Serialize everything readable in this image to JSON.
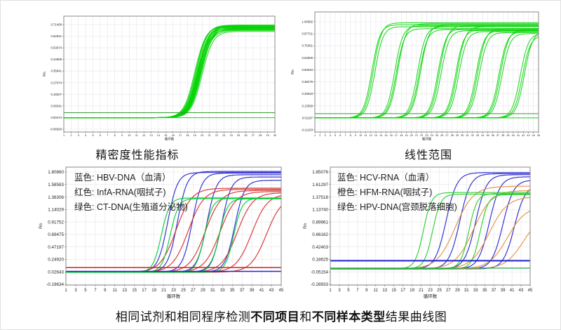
{
  "captions": {
    "top_left": "精密度性能指标",
    "top_right": "线性范围",
    "bottom": [
      {
        "text": "相同试剂和相同程序检测",
        "bold": false
      },
      {
        "text": "不同项目",
        "bold": true
      },
      {
        "text": "和",
        "bold": false
      },
      {
        "text": "不同样本类型",
        "bold": true
      },
      {
        "text": "结果曲线图",
        "bold": false
      }
    ]
  },
  "chart_data": [
    {
      "id": "precision",
      "type": "line",
      "title": "精密度性能指标",
      "xlabel": "循环数",
      "ylabel": "Rn",
      "grid": true,
      "legend_position": "none",
      "x_range": [
        1,
        30
      ],
      "x_ticks": [
        1,
        2,
        3,
        4,
        5,
        6,
        7,
        8,
        9,
        10,
        11,
        12,
        13,
        14,
        15,
        16,
        17,
        18,
        19,
        20,
        21,
        22,
        23,
        24,
        25,
        26,
        27,
        28,
        29,
        30
      ],
      "y_ticks": [
        "0.71408",
        "0.62541",
        "0.53674",
        "0.44808",
        "0.35941",
        "0.27074",
        "0.18207",
        "0.09341",
        "0.00474",
        "-0.08393"
      ],
      "y_range": [
        -0.08393,
        0.71408
      ],
      "thresholds": [
        {
          "y": 0.042,
          "color": "#2f9e2f",
          "width": 1
        }
      ],
      "curve_format": [
        "ct_midpoint",
        "plateau"
      ],
      "series": [
        {
          "color": "#00d400",
          "baseline": 0.004,
          "k": 0.75,
          "width": 1,
          "curves": [
            [
              19.0,
              0.7
            ],
            [
              19.15,
              0.71
            ],
            [
              19.3,
              0.695
            ],
            [
              19.4,
              0.688
            ],
            [
              19.5,
              0.705
            ],
            [
              19.6,
              0.678
            ],
            [
              19.7,
              0.692
            ],
            [
              19.8,
              0.67
            ],
            [
              19.9,
              0.685
            ],
            [
              20.0,
              0.662
            ],
            [
              19.2,
              0.708
            ],
            [
              19.55,
              0.699
            ],
            [
              19.75,
              0.682
            ],
            [
              19.35,
              0.702
            ],
            [
              19.65,
              0.69
            ],
            [
              19.45,
              0.674
            ],
            [
              200,
              0.7
            ]
          ]
        }
      ]
    },
    {
      "id": "linear-range",
      "type": "line",
      "title": "线性范围",
      "xlabel": "循环数",
      "ylabel": "Rn",
      "grid": true,
      "legend_position": "none",
      "x_range": [
        1,
        45
      ],
      "x_ticks": [
        1,
        2,
        3,
        4,
        5,
        6,
        7,
        8,
        9,
        10,
        11,
        12,
        13,
        14,
        15,
        16,
        17,
        18,
        19,
        20,
        21,
        22,
        23,
        24,
        25,
        26,
        27,
        28,
        29,
        30,
        31,
        32,
        33,
        34,
        35,
        36,
        37,
        38,
        39,
        40,
        41,
        42,
        43,
        44,
        45
      ],
      "y_ticks": [
        "1.00082",
        "0.87721",
        "0.75361",
        "0.63000",
        "0.50640",
        "0.38279",
        "0.25918",
        "0.13558",
        "0.01197",
        "-0.11163"
      ],
      "y_range": [
        -0.11163,
        1.00082
      ],
      "thresholds": [
        {
          "y": 0.055,
          "color": "#2f9e2f",
          "width": 1
        }
      ],
      "curve_format": [
        "ct_midpoint",
        "plateau"
      ],
      "series": [
        {
          "color": "#00d400",
          "baseline": 0.012,
          "k": 0.8,
          "width": 1,
          "curves": [
            [
              12.2,
              0.97
            ],
            [
              12.5,
              0.99
            ],
            [
              12.8,
              0.95
            ],
            [
              16.7,
              0.96
            ],
            [
              17.0,
              0.93
            ],
            [
              17.3,
              0.98
            ],
            [
              21.2,
              0.95
            ],
            [
              21.5,
              0.92
            ],
            [
              21.8,
              0.97
            ],
            [
              25.2,
              0.93
            ],
            [
              25.5,
              0.96
            ],
            [
              25.8,
              0.91
            ],
            [
              28.7,
              0.92
            ],
            [
              29.0,
              0.95
            ],
            [
              29.3,
              0.9
            ],
            [
              32.7,
              0.91
            ],
            [
              33.0,
              0.93
            ],
            [
              33.3,
              0.89
            ],
            [
              37.2,
              0.9
            ],
            [
              37.5,
              0.92
            ],
            [
              37.8,
              0.88
            ],
            [
              41.4,
              0.88
            ],
            [
              41.8,
              0.86
            ],
            [
              42.2,
              0.9
            ],
            [
              200,
              0.9
            ]
          ]
        }
      ]
    },
    {
      "id": "different-targets",
      "type": "line",
      "title": "",
      "xlabel": "循环数",
      "ylabel": "Rn",
      "grid": true,
      "legend_position": "top-left",
      "legend": [
        {
          "label": "蓝色: HBV-DNA（血清）",
          "color": "#2424cc"
        },
        {
          "label": "红色: InfA-RNA(咽拭子)",
          "color": "#e03030"
        },
        {
          "label": "绿色: CT-DNA(生殖道分泌物)",
          "color": "#00cc44"
        }
      ],
      "x_range": [
        1,
        45
      ],
      "x_ticks": [
        1,
        3,
        5,
        7,
        9,
        11,
        13,
        15,
        17,
        19,
        21,
        23,
        25,
        27,
        29,
        31,
        33,
        35,
        37,
        39,
        41,
        43,
        45
      ],
      "y_ticks": [
        "1.80860",
        "1.58583",
        "1.36306",
        "1.14029",
        "0.91752",
        "0.69475",
        "0.47197",
        "0.24920",
        "0.02643",
        "-0.19634"
      ],
      "y_range": [
        -0.19634,
        1.8086
      ],
      "thresholds": [
        {
          "y": 0.105,
          "color": "#d42020",
          "width": 1.6
        },
        {
          "y": 0.035,
          "color": "#2424cc",
          "width": 1.4
        }
      ],
      "curve_format": [
        "ct_midpoint",
        "plateau"
      ],
      "series": [
        {
          "name": "HBV-DNA（血清）",
          "color": "#2424cc",
          "baseline": 0.025,
          "k": 1.0,
          "width": 1.2,
          "curves": [
            [
              21.8,
              1.8
            ],
            [
              23.8,
              1.82
            ],
            [
              26.8,
              1.79
            ],
            [
              29.8,
              1.76
            ],
            [
              32.8,
              1.72
            ],
            [
              35.5,
              1.66
            ]
          ]
        },
        {
          "name": "InfA-RNA(咽拭子)",
          "color": "#d62b2b",
          "baseline": 0.02,
          "k": 1.6,
          "width": 1.2,
          "curves": [
            [
              23.5,
              1.52
            ],
            [
              26.0,
              1.5
            ],
            [
              29.5,
              1.48
            ],
            [
              32.5,
              1.46
            ],
            [
              36.0,
              1.44
            ],
            [
              39.0,
              1.42
            ],
            [
              42.0,
              1.38
            ]
          ]
        },
        {
          "name": "CT-DNA(生殖道分泌物)",
          "color": "#00cc33",
          "baseline": 0.02,
          "k": 0.85,
          "width": 1.2,
          "curves": [
            [
              20.5,
              1.345
            ],
            [
              22.3,
              1.335
            ],
            [
              29.3,
              1.34
            ],
            [
              32.3,
              1.33
            ],
            [
              35.3,
              1.34
            ]
          ]
        }
      ]
    },
    {
      "id": "different-samples",
      "type": "line",
      "title": "",
      "xlabel": "循环数",
      "ylabel": "Rn",
      "grid": true,
      "legend_position": "top-left",
      "legend": [
        {
          "label": "蓝色: HCV-RNA（血清）",
          "color": "#2424cc"
        },
        {
          "label": "橙色: HFM-RNA(咽拭子)",
          "color": "#cc8833"
        },
        {
          "label": "绿色: HPV-DNA(宫颈脱落细胞)",
          "color": "#22cc44"
        }
      ],
      "x_range": [
        1,
        45
      ],
      "x_ticks": [
        1,
        3,
        5,
        7,
        9,
        11,
        13,
        15,
        17,
        19,
        21,
        23,
        25,
        27,
        29,
        31,
        33,
        35,
        37,
        39,
        41,
        43,
        45
      ],
      "y_ticks": [
        "1.85076",
        "1.61297",
        "1.37518",
        "1.13740",
        "0.89961",
        "0.66182",
        "0.42403",
        "0.18625",
        "-0.05154",
        "-0.28933"
      ],
      "y_range": [
        -0.28933,
        1.85076
      ],
      "thresholds": [
        {
          "y": 0.16,
          "color": "#2424cc",
          "width": 2
        },
        {
          "y": 0.02,
          "color": "#20a050",
          "width": 1.2
        }
      ],
      "curve_format": [
        "ct_midpoint",
        "plateau"
      ],
      "series": [
        {
          "name": "HCV-RNA（血清）",
          "color": "#2424cc",
          "baseline": 0.005,
          "k": 1.2,
          "width": 1.2,
          "curves": [
            [
              26.5,
              1.84
            ],
            [
              29.5,
              1.82
            ],
            [
              33.0,
              1.8
            ],
            [
              36.0,
              1.76
            ],
            [
              39.0,
              1.7
            ],
            [
              41.5,
              1.6
            ]
          ]
        },
        {
          "name": "HFM-RNA(咽拭子)",
          "color": "#e0913f",
          "baseline": 0.005,
          "k": 2.0,
          "width": 1.2,
          "curves": [
            [
              28.5,
              1.58
            ],
            [
              32.5,
              1.5
            ],
            [
              36.0,
              1.38
            ],
            [
              40.0,
              1.2
            ],
            [
              43.5,
              1.05
            ]
          ]
        },
        {
          "name": "HPV-DNA(宫颈脱落细胞)",
          "color": "#28cc28",
          "baseline": 0.01,
          "k": 0.9,
          "width": 1.2,
          "curves": [
            [
              21.5,
              1.46
            ],
            [
              23.5,
              1.43
            ],
            [
              31.5,
              1.44
            ],
            [
              34.0,
              1.42
            ]
          ]
        }
      ]
    }
  ]
}
